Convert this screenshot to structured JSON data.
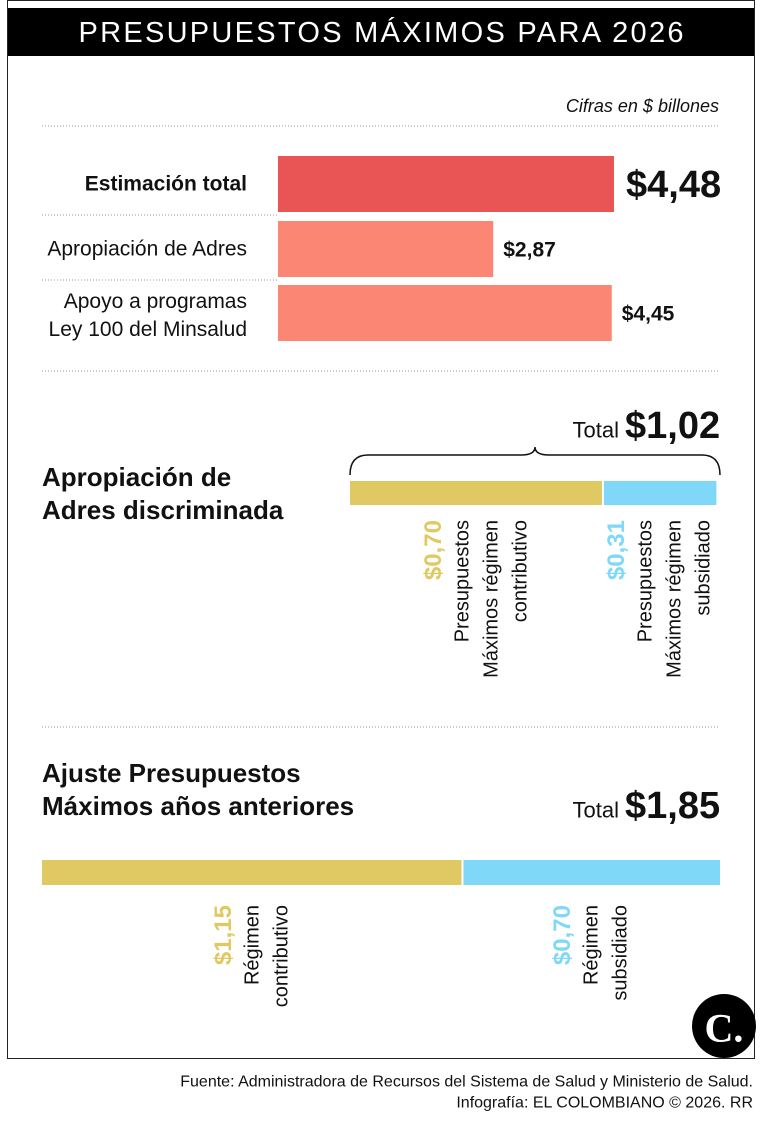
{
  "header": {
    "title": "PRESUPUESTOS MÁXIMOS PARA 2026"
  },
  "note": "Cifras en $ billones",
  "chart_data": [
    {
      "type": "hbar",
      "categories": [
        "Estimación total",
        "Apropiación de Adres",
        "Apoyo a programas\nLey 100 del Minsalud"
      ],
      "values": [
        4.48,
        2.87,
        4.45
      ],
      "value_labels": [
        "$4,48",
        "$2,87",
        "$4,45"
      ],
      "colors": [
        "#e95454",
        "#fb8673",
        "#fb8673"
      ]
    },
    {
      "type": "stacked-bar",
      "title": "Apropiación de\nAdres discriminada",
      "total_label": "Total",
      "total": 1.02,
      "total_value_label": "$1,02",
      "brace": true,
      "series": [
        {
          "name": "Presupuestos\nMáximos régimen\ncontributivo",
          "color": "#e0c962",
          "values": [
            0.7
          ],
          "value_labels": [
            "$0,70"
          ]
        },
        {
          "name": "Presupuestos\nMáximos régimen\nsubsidiado",
          "color": "#7fd8f7",
          "values": [
            0.31
          ],
          "value_labels": [
            "$0,31"
          ]
        }
      ]
    },
    {
      "type": "stacked-bar",
      "title": "Ajuste Presupuestos\nMáximos años anteriores",
      "total_label": "Total",
      "total": 1.85,
      "total_value_label": "$1,85",
      "brace": false,
      "series": [
        {
          "name": "Régimen\ncontributivo",
          "color": "#e0c962",
          "values": [
            1.15
          ],
          "value_labels": [
            "$1,15"
          ]
        },
        {
          "name": "Régimen\nsubsidiado",
          "color": "#7fd8f7",
          "values": [
            0.7
          ],
          "value_labels": [
            "$0,70"
          ]
        }
      ]
    }
  ],
  "logo": "C.",
  "footer": {
    "source": "Fuente: Administradora de Recursos del Sistema de Salud y Ministerio de Salud.",
    "credit": "Infografía: EL COLOMBIANO © 2026. RR"
  }
}
